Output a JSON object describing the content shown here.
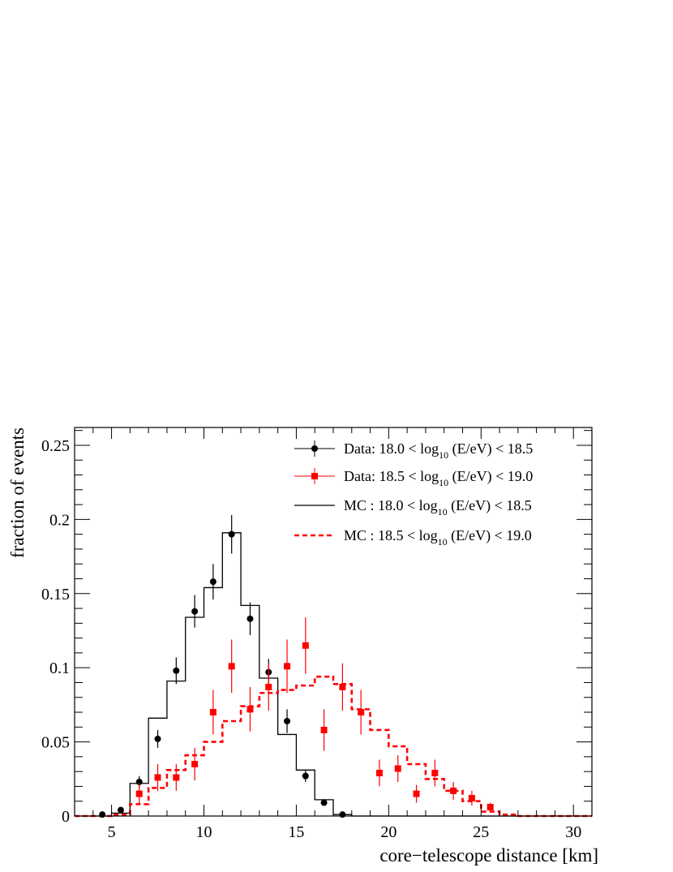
{
  "chart_data": {
    "type": "histogram",
    "xlabel": "core−telescope distance [km]",
    "ylabel": "fraction of events",
    "xlim": [
      3,
      31
    ],
    "ylim": [
      0,
      0.262
    ],
    "x_ticks": [
      5,
      10,
      15,
      20,
      25,
      30
    ],
    "x_tick_labels": [
      "5",
      "10",
      "15",
      "20",
      "25",
      "30"
    ],
    "y_ticks": [
      0,
      0.05,
      0.1,
      0.15,
      0.2,
      0.25
    ],
    "y_tick_labels": [
      "0",
      "0.05",
      "0.1",
      "0.15",
      "0.2",
      "0.25"
    ],
    "grid": false,
    "legend_position": "top-right",
    "legend": [
      {
        "prefix": "Data: 18.0 < log",
        "sub": "10",
        "suffix": " (E/eV) < 18.5",
        "style": "black-circle-marker"
      },
      {
        "prefix": "Data: 18.5 < log",
        "sub": "10",
        "suffix": " (E/eV) < 19.0",
        "style": "red-square-marker"
      },
      {
        "prefix": "MC  : 18.0 < log",
        "sub": "10",
        "suffix": " (E/eV) < 18.5",
        "style": "black-solid-line"
      },
      {
        "prefix": "MC  : 18.5 < log",
        "sub": "10",
        "suffix": " (E/eV) < 19.0",
        "style": "red-dashed-line"
      }
    ],
    "colors": {
      "low_energy": "#000000",
      "high_energy": "#ff0000"
    },
    "bin_edges": [
      3,
      4,
      5,
      6,
      7,
      8,
      9,
      10,
      11,
      12,
      13,
      14,
      15,
      16,
      17,
      18,
      19,
      20,
      21,
      22,
      23,
      24,
      25,
      26,
      27,
      28,
      29,
      30,
      31
    ],
    "series": [
      {
        "kind": "mc_histogram",
        "line": "solid",
        "color": "#000000",
        "values": [
          0,
          0,
          0.002,
          0.022,
          0.066,
          0.091,
          0.134,
          0.154,
          0.191,
          0.142,
          0.093,
          0.055,
          0.031,
          0.011,
          0.001,
          0,
          0,
          0,
          0,
          0,
          0,
          0,
          0,
          0,
          0,
          0,
          0,
          0
        ]
      },
      {
        "kind": "mc_histogram",
        "line": "dashed",
        "color": "#ff0000",
        "values": [
          0,
          0,
          0.001,
          0.008,
          0.019,
          0.031,
          0.041,
          0.05,
          0.064,
          0.074,
          0.083,
          0.085,
          0.088,
          0.094,
          0.089,
          0.072,
          0.058,
          0.047,
          0.035,
          0.025,
          0.017,
          0.01,
          0.003,
          0.001,
          0,
          0,
          0,
          0
        ]
      },
      {
        "kind": "data_points",
        "marker": "circle",
        "color": "#000000",
        "x": [
          4.5,
          5.5,
          6.5,
          7.5,
          8.5,
          9.5,
          10.5,
          11.5,
          12.5,
          13.5,
          14.5,
          15.5,
          16.5,
          17.5
        ],
        "y": [
          0.001,
          0.004,
          0.023,
          0.052,
          0.098,
          0.138,
          0.158,
          0.19,
          0.133,
          0.097,
          0.064,
          0.027,
          0.009,
          0.001
        ],
        "err": [
          0.001,
          0.002,
          0.004,
          0.006,
          0.009,
          0.011,
          0.012,
          0.013,
          0.011,
          0.009,
          0.008,
          0.004,
          0.002,
          0.001
        ]
      },
      {
        "kind": "data_points",
        "marker": "square",
        "color": "#ff0000",
        "x": [
          6.5,
          7.5,
          8.5,
          9.5,
          10.5,
          11.5,
          12.5,
          13.5,
          14.5,
          15.5,
          16.5,
          17.5,
          18.5,
          19.5,
          20.5,
          21.5,
          22.5,
          23.5,
          24.5,
          25.5
        ],
        "y": [
          0.015,
          0.026,
          0.026,
          0.035,
          0.07,
          0.101,
          0.072,
          0.087,
          0.101,
          0.115,
          0.058,
          0.087,
          0.07,
          0.029,
          0.032,
          0.015,
          0.029,
          0.017,
          0.012,
          0.006
        ],
        "err": [
          0.007,
          0.009,
          0.009,
          0.011,
          0.015,
          0.018,
          0.015,
          0.016,
          0.018,
          0.019,
          0.014,
          0.016,
          0.015,
          0.009,
          0.009,
          0.006,
          0.009,
          0.006,
          0.005,
          0.003
        ]
      }
    ]
  }
}
